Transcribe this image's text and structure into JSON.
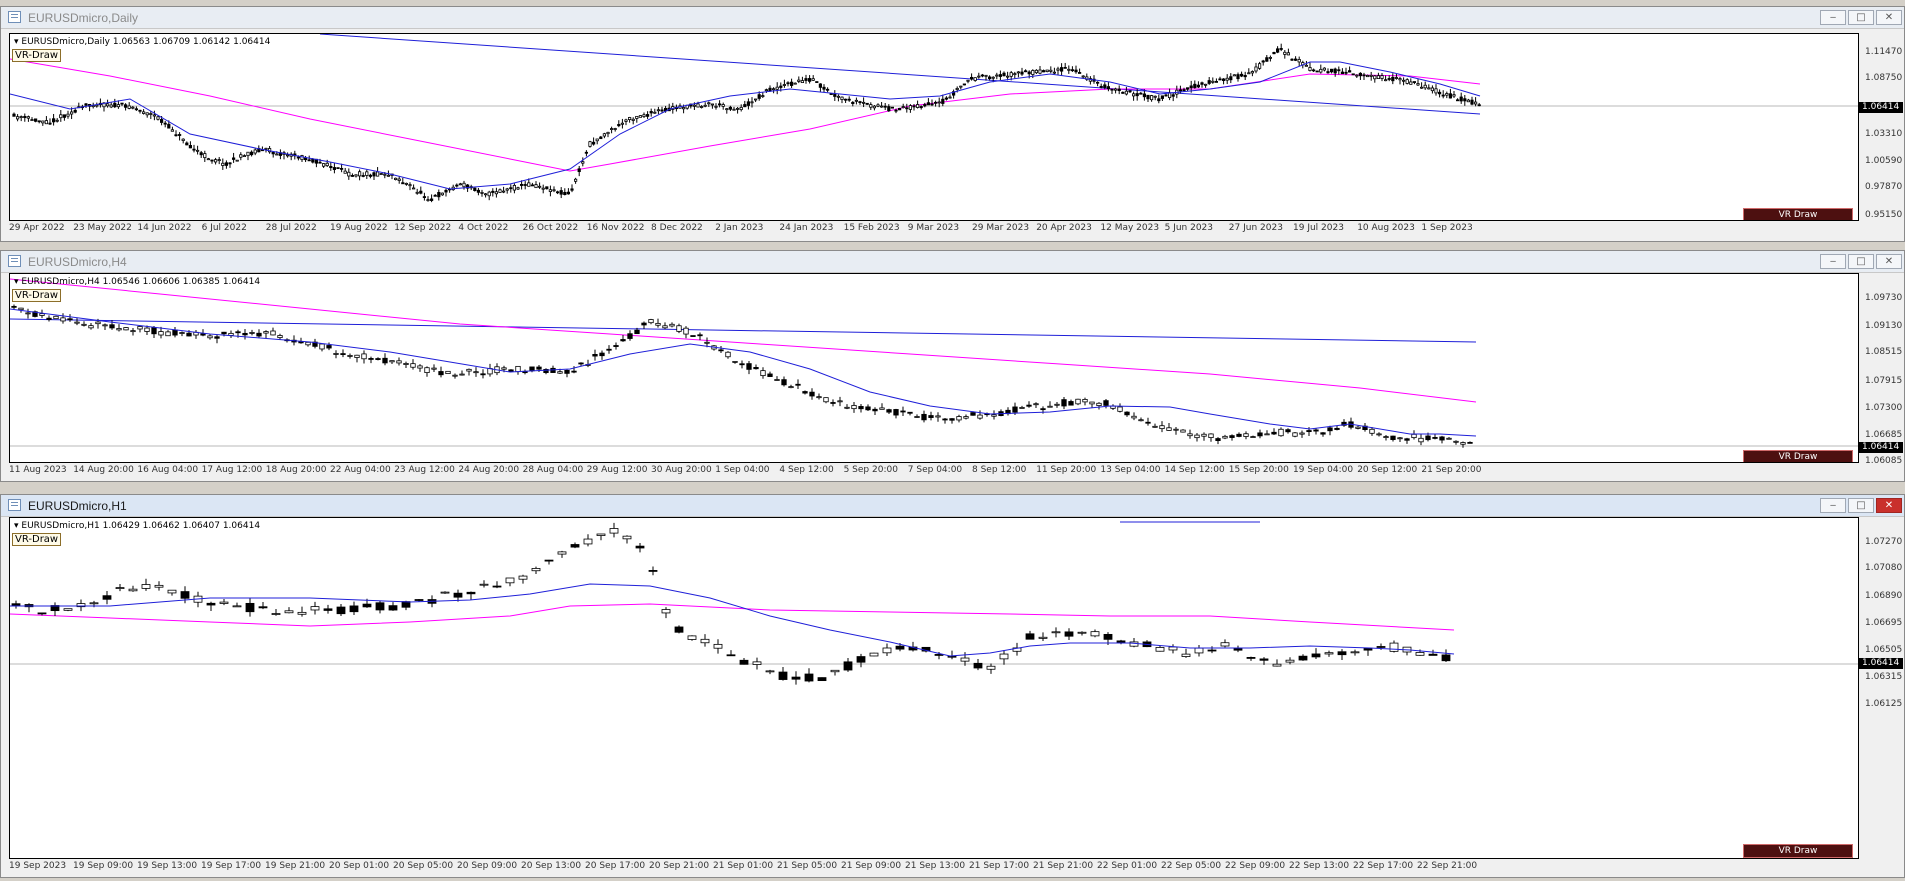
{
  "windows": [
    {
      "id": "daily",
      "title": "EURUSDmicro,Daily",
      "active": false,
      "symbol_header": "EURUSDmicro,Daily  1.06563 1.06709 1.06142 1.06414",
      "vr_label": "VR-Draw",
      "vr_button": "VR Draw",
      "current_price": "1.06414",
      "y_labels": [
        "1.11470",
        "1.08750",
        "1.03310",
        "1.00590",
        "0.97870",
        "0.95150"
      ],
      "x_labels": [
        "29 Apr 2022",
        "23 May 2022",
        "14 Jun 2022",
        "6 Jul 2022",
        "28 Jul 2022",
        "19 Aug 2022",
        "12 Sep 2022",
        "4 Oct 2022",
        "26 Oct 2022",
        "16 Nov 2022",
        "8 Dec 2022",
        "2 Jan 2023",
        "24 Jan 2023",
        "15 Feb 2023",
        "9 Mar 2023",
        "29 Mar 2023",
        "20 Apr 2023",
        "12 May 2023",
        "5 Jun 2023",
        "27 Jun 2023",
        "19 Jul 2023",
        "10 Aug 2023",
        "1 Sep 2023"
      ]
    },
    {
      "id": "h4",
      "title": "EURUSDmicro,H4",
      "active": false,
      "symbol_header": "EURUSDmicro,H4  1.06546 1.06606 1.06385 1.06414",
      "vr_label": "VR-Draw",
      "vr_button": "VR Draw",
      "current_price": "1.06414",
      "y_labels": [
        "1.09730",
        "1.09130",
        "1.08515",
        "1.07915",
        "1.07300",
        "1.06685",
        "1.06085"
      ],
      "x_labels": [
        "11 Aug 2023",
        "14 Aug 20:00",
        "16 Aug 04:00",
        "17 Aug 12:00",
        "18 Aug 20:00",
        "22 Aug 04:00",
        "23 Aug 12:00",
        "24 Aug 20:00",
        "28 Aug 04:00",
        "29 Aug 12:00",
        "30 Aug 20:00",
        "1 Sep 04:00",
        "4 Sep 12:00",
        "5 Sep 20:00",
        "7 Sep 04:00",
        "8 Sep 12:00",
        "11 Sep 20:00",
        "13 Sep 04:00",
        "14 Sep 12:00",
        "15 Sep 20:00",
        "19 Sep 04:00",
        "20 Sep 12:00",
        "21 Sep 20:00"
      ]
    },
    {
      "id": "h1",
      "title": "EURUSDmicro,H1",
      "active": true,
      "symbol_header": "EURUSDmicro,H1  1.06429 1.06462 1.06407 1.06414",
      "vr_label": "VR-Draw",
      "vr_button": "VR Draw",
      "current_price": "1.06414",
      "y_labels": [
        "1.07270",
        "1.07080",
        "1.06890",
        "1.06695",
        "1.06505",
        "1.06315",
        "1.06125"
      ],
      "x_labels": [
        "19 Sep 2023",
        "19 Sep 09:00",
        "19 Sep 13:00",
        "19 Sep 17:00",
        "19 Sep 21:00",
        "20 Sep 01:00",
        "20 Sep 05:00",
        "20 Sep 09:00",
        "20 Sep 13:00",
        "20 Sep 17:00",
        "20 Sep 21:00",
        "21 Sep 01:00",
        "21 Sep 05:00",
        "21 Sep 09:00",
        "21 Sep 13:00",
        "21 Sep 17:00",
        "21 Sep 21:00",
        "22 Sep 01:00",
        "22 Sep 05:00",
        "22 Sep 09:00",
        "22 Sep 13:00",
        "22 Sep 17:00",
        "22 Sep 21:00"
      ]
    }
  ],
  "window_buttons": {
    "minimize": "‒",
    "maximize": "□",
    "close": "✕"
  },
  "colors": {
    "bull": "#ffffff",
    "bear": "#000000",
    "ma_fast": "#1f1fd8",
    "ma_slow": "#ff00ff",
    "trend": "#1f1fd8"
  },
  "icons": [
    "chart-window-icon",
    "minimize-icon",
    "maximize-icon",
    "close-icon",
    "dropdown-triangle-icon"
  ]
}
